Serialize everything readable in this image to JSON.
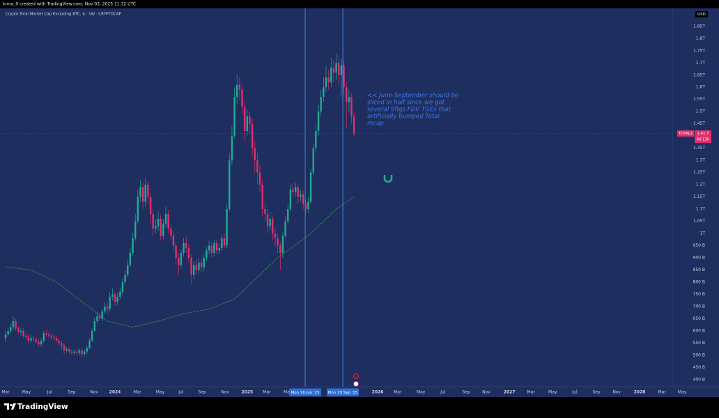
{
  "header": {
    "credit": "krma_0 created with TradingView.com, Nov 03, 2025 11:32 UTC"
  },
  "footer": {
    "brand": "TradingView"
  },
  "chart_data": {
    "type": "candlestick",
    "title": "Crypto Total Market Cap Excluding BTC, $ · 1W · CRYPTOCAP",
    "currency": "USD",
    "up_color": "#22ab94",
    "down_color": "#e0306d",
    "open": [
      570,
      585,
      600,
      615,
      640,
      610,
      595,
      600,
      580,
      575,
      560,
      570,
      565,
      555,
      545,
      560,
      590,
      585,
      580,
      575,
      570,
      560,
      550,
      540,
      520,
      525,
      515,
      510,
      515,
      510,
      520,
      505,
      515,
      530,
      560,
      600,
      640,
      660,
      650,
      680,
      700,
      690,
      740,
      750,
      720,
      740,
      760,
      800,
      830,
      870,
      920,
      980,
      1050,
      1150,
      1190,
      1130,
      1200,
      1150,
      1080,
      1020,
      1030,
      1060,
      990,
      1040,
      1080,
      1020,
      990,
      950,
      900,
      870,
      920,
      960,
      940,
      900,
      830,
      870,
      850,
      880,
      860,
      900,
      930,
      950,
      920,
      960,
      930,
      940,
      980,
      950,
      1100,
      1300,
      1400,
      1560,
      1610,
      1590,
      1520,
      1420,
      1480,
      1450,
      1350,
      1300,
      1250,
      1200,
      1100,
      1080,
      1030,
      1060,
      1000,
      980,
      950,
      920,
      990,
      1050,
      1100,
      1180,
      1170,
      1190,
      1150,
      1160,
      1120,
      1100,
      1130,
      1250,
      1350,
      1420,
      1500,
      1560,
      1600,
      1640,
      1620,
      1680,
      1660,
      1700,
      1650,
      1690,
      1600,
      1540,
      1560,
      1480
    ],
    "high": [
      600,
      615,
      630,
      660,
      650,
      620,
      615,
      610,
      590,
      585,
      585,
      580,
      575,
      565,
      570,
      600,
      605,
      595,
      590,
      585,
      580,
      570,
      560,
      550,
      535,
      535,
      525,
      525,
      525,
      530,
      530,
      525,
      540,
      570,
      610,
      655,
      680,
      675,
      690,
      720,
      715,
      760,
      775,
      760,
      755,
      775,
      815,
      850,
      890,
      940,
      1000,
      1080,
      1180,
      1220,
      1210,
      1230,
      1215,
      1165,
      1100,
      1060,
      1090,
      1075,
      1060,
      1110,
      1095,
      1035,
      1010,
      965,
      920,
      935,
      980,
      985,
      955,
      915,
      885,
      890,
      900,
      895,
      915,
      945,
      970,
      965,
      975,
      975,
      960,
      995,
      1000,
      1120,
      1330,
      1440,
      1600,
      1650,
      1640,
      1610,
      1540,
      1510,
      1500,
      1470,
      1380,
      1330,
      1280,
      1220,
      1130,
      1100,
      1090,
      1075,
      1020,
      1000,
      965,
      1005,
      1070,
      1120,
      1200,
      1210,
      1210,
      1200,
      1180,
      1175,
      1140,
      1150,
      1265,
      1370,
      1445,
      1530,
      1590,
      1640,
      1690,
      1670,
      1720,
      1710,
      1740,
      1730,
      1720,
      1710,
      1620,
      1590,
      1575,
      1500
    ],
    "low": [
      555,
      575,
      590,
      605,
      600,
      585,
      580,
      570,
      565,
      550,
      550,
      555,
      545,
      535,
      535,
      550,
      575,
      570,
      565,
      560,
      550,
      540,
      525,
      505,
      510,
      505,
      500,
      500,
      500,
      500,
      495,
      495,
      505,
      525,
      555,
      595,
      630,
      640,
      640,
      670,
      670,
      680,
      725,
      700,
      705,
      730,
      750,
      790,
      820,
      860,
      910,
      970,
      1040,
      1130,
      1100,
      1110,
      1120,
      1040,
      990,
      1000,
      1010,
      970,
      975,
      1025,
      1000,
      970,
      930,
      870,
      830,
      855,
      905,
      920,
      880,
      790,
      810,
      830,
      835,
      840,
      845,
      885,
      915,
      900,
      905,
      915,
      915,
      925,
      935,
      940,
      1090,
      1280,
      1390,
      1530,
      1550,
      1490,
      1380,
      1400,
      1410,
      1320,
      1250,
      1200,
      1170,
      1070,
      1050,
      1000,
      1010,
      970,
      950,
      920,
      850,
      900,
      980,
      1040,
      1090,
      1150,
      1150,
      1120,
      1130,
      1100,
      1080,
      1085,
      1120,
      1240,
      1330,
      1400,
      1480,
      1540,
      1580,
      1590,
      1600,
      1620,
      1630,
      1610,
      1560,
      1570,
      1430,
      1500,
      1450,
      1400
    ],
    "close": [
      585,
      600,
      615,
      640,
      610,
      595,
      600,
      580,
      575,
      560,
      570,
      565,
      555,
      545,
      560,
      590,
      585,
      580,
      575,
      570,
      560,
      550,
      540,
      520,
      525,
      515,
      510,
      515,
      510,
      520,
      505,
      515,
      530,
      560,
      600,
      640,
      660,
      650,
      680,
      700,
      690,
      740,
      750,
      720,
      740,
      760,
      800,
      830,
      870,
      920,
      980,
      1050,
      1150,
      1190,
      1130,
      1200,
      1150,
      1080,
      1020,
      1030,
      1060,
      990,
      1040,
      1080,
      1020,
      990,
      950,
      900,
      870,
      920,
      960,
      940,
      900,
      830,
      870,
      850,
      880,
      860,
      900,
      930,
      950,
      920,
      960,
      930,
      940,
      980,
      950,
      1100,
      1300,
      1400,
      1560,
      1610,
      1590,
      1520,
      1420,
      1480,
      1450,
      1350,
      1300,
      1250,
      1200,
      1100,
      1080,
      1030,
      1060,
      1000,
      980,
      950,
      920,
      990,
      1050,
      1100,
      1180,
      1170,
      1190,
      1150,
      1160,
      1120,
      1100,
      1130,
      1250,
      1350,
      1420,
      1500,
      1560,
      1600,
      1640,
      1620,
      1680,
      1660,
      1700,
      1650,
      1690,
      1600,
      1540,
      1560,
      1480,
      1410
    ],
    "ma": {
      "color": "#3fa34d",
      "x": [
        0,
        10,
        20,
        30,
        40,
        50,
        60,
        70,
        80,
        90,
        100,
        107,
        115,
        120,
        130,
        137
      ],
      "values": [
        863,
        850,
        800,
        720,
        640,
        615,
        640,
        670,
        690,
        730,
        830,
        900,
        960,
        1000,
        1100,
        1150
      ]
    },
    "last": {
      "name": "TOTAL2",
      "value": 1410,
      "label": "1.41 T",
      "countdown": "6d 13h",
      "color": "#e0306d"
    },
    "markers": [
      {
        "x": 117.8,
        "label": "Mon 16 Jun '25"
      },
      {
        "x": 132.6,
        "label": "Mon 29 Sep '25"
      }
    ],
    "annotation": [
      "<< June-September should be",
      "sliced in half since we got",
      "several 9figs FDV TGEs that",
      "artificially bumped Total",
      "mcap"
    ],
    "grid": false,
    "xlim": [
      -2.2,
      269
    ],
    "xticks": [
      {
        "value": 0,
        "label": "Mar"
      },
      {
        "value": 8.2,
        "label": "May"
      },
      {
        "value": 17.3,
        "label": "Jul"
      },
      {
        "value": 26,
        "label": "Sep"
      },
      {
        "value": 34.8,
        "label": "Nov"
      },
      {
        "value": 43,
        "label": "2024"
      },
      {
        "value": 51.8,
        "label": "Mar"
      },
      {
        "value": 60.8,
        "label": "May"
      },
      {
        "value": 69,
        "label": "Jul"
      },
      {
        "value": 77.3,
        "label": "Sep"
      },
      {
        "value": 86.3,
        "label": "Nov"
      },
      {
        "value": 95,
        "label": "2025"
      },
      {
        "value": 102.7,
        "label": "Mar"
      },
      {
        "value": 111,
        "label": "May"
      },
      {
        "value": 146.3,
        "label": "2026"
      },
      {
        "value": 154.2,
        "label": "Mar"
      },
      {
        "value": 163.3,
        "label": "May"
      },
      {
        "value": 172,
        "label": "Jul"
      },
      {
        "value": 181.1,
        "label": "Sep"
      },
      {
        "value": 189,
        "label": "Nov"
      },
      {
        "value": 198.1,
        "label": "2027"
      },
      {
        "value": 206.6,
        "label": "Mar"
      },
      {
        "value": 215.1,
        "label": "May"
      },
      {
        "value": 223.8,
        "label": "Jul"
      },
      {
        "value": 232.3,
        "label": "Sep"
      },
      {
        "value": 240.3,
        "label": "Nov"
      },
      {
        "value": 249.3,
        "label": "2028"
      },
      {
        "value": 258.1,
        "label": "Mar"
      },
      {
        "value": 266,
        "label": "May"
      }
    ],
    "ylim": [
      371,
      1921
    ],
    "yticks": [
      {
        "value": 400,
        "label": "400 B"
      },
      {
        "value": 450,
        "label": "450 B"
      },
      {
        "value": 500,
        "label": "500 B"
      },
      {
        "value": 550,
        "label": "550 B"
      },
      {
        "value": 600,
        "label": "600 B"
      },
      {
        "value": 650,
        "label": "650 B"
      },
      {
        "value": 700,
        "label": "700 B"
      },
      {
        "value": 750,
        "label": "750 B"
      },
      {
        "value": 800,
        "label": "800 B"
      },
      {
        "value": 850,
        "label": "850 B"
      },
      {
        "value": 900,
        "label": "900 B"
      },
      {
        "value": 950,
        "label": "950 B"
      },
      {
        "value": 1000,
        "label": "1T"
      },
      {
        "value": 1050,
        "label": "1.05T"
      },
      {
        "value": 1100,
        "label": "1.1T"
      },
      {
        "value": 1150,
        "label": "1.15T"
      },
      {
        "value": 1200,
        "label": "1.2T"
      },
      {
        "value": 1250,
        "label": "1.25T"
      },
      {
        "value": 1300,
        "label": "1.3T"
      },
      {
        "value": 1350,
        "label": "1.35T"
      },
      {
        "value": 1400,
        "label": "1.4T"
      },
      {
        "value": 1450,
        "label": "1.45T"
      },
      {
        "value": 1500,
        "label": "1.5T"
      },
      {
        "value": 1550,
        "label": "1.55T"
      },
      {
        "value": 1600,
        "label": "1.6T"
      },
      {
        "value": 1650,
        "label": "1.65T"
      },
      {
        "value": 1700,
        "label": "1.7T"
      },
      {
        "value": 1750,
        "label": "1.75T"
      },
      {
        "value": 1800,
        "label": "1.8T"
      },
      {
        "value": 1850,
        "label": "1.85T"
      }
    ]
  }
}
